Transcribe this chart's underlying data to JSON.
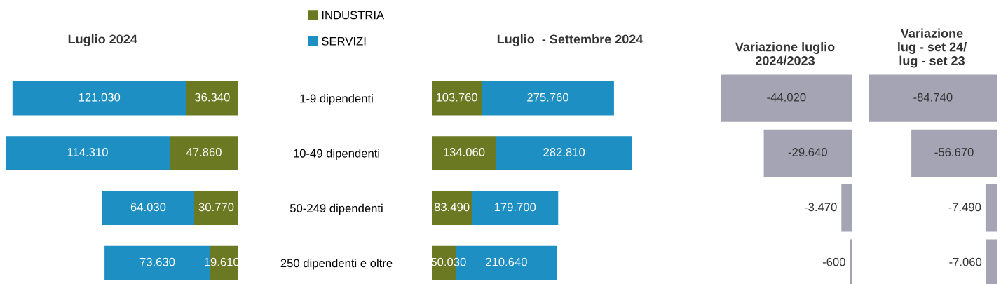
{
  "chart_data": [
    {
      "type": "bar",
      "orientation": "horizontal",
      "stacked": true,
      "title": "Luglio 2024",
      "categories": [
        null,
        null,
        null,
        null
      ],
      "tick_labels": false,
      "legend": "top right",
      "series": [
        {
          "name": "INDUSTRIA",
          "color": "#6b7a22",
          "values": [
            36340,
            47860,
            30770,
            19610
          ],
          "value_labels": [
            "36.340",
            "47.860",
            "30.770",
            "19.610"
          ]
        },
        {
          "name": "SERVIZI",
          "color": "#1e8fc3",
          "values": [
            121030,
            114310,
            64030,
            73630
          ],
          "value_labels": [
            "121.030",
            "114.310",
            "64.030",
            "73.630"
          ]
        }
      ]
    },
    {
      "type": "bar",
      "orientation": "horizontal",
      "stacked": true,
      "title": "Luglio  - Settembre 2024",
      "categories": [
        "1-9 dipendenti",
        "10-49 dipendenti",
        "50-249 dipendenti",
        "250 dipendenti e oltre"
      ],
      "tick_labels": "y",
      "series": [
        {
          "color": "#6b7a22",
          "values": [
            103760,
            134060,
            83490,
            50030
          ],
          "value_labels": [
            "103.760",
            "134.060",
            "83.490",
            "50.030"
          ]
        },
        {
          "color": "#1e8fc3",
          "values": [
            275760,
            282810,
            179700,
            210640
          ],
          "value_labels": [
            "275.760",
            "282.810",
            "179.700",
            "210.640"
          ]
        }
      ]
    },
    {
      "type": "bar",
      "orientation": "horizontal",
      "title": "Variazione luglio\n2024/2023",
      "categories": [
        null,
        null,
        null,
        null
      ],
      "tick_labels": false,
      "series": [
        {
          "color": "#a4a4b4",
          "values": [
            -44020,
            -29640,
            -3470,
            -600
          ],
          "value_labels": [
            "-44.020",
            "-29.640",
            "-3.470",
            "-600"
          ]
        }
      ]
    },
    {
      "type": "bar",
      "orientation": "horizontal",
      "title": "Variazione\nlug - set 24/\nlug - set 23",
      "categories": [
        null,
        null,
        null,
        null
      ],
      "tick_labels": false,
      "series": [
        {
          "color": "#a4a4b4",
          "values": [
            -84740,
            -56670,
            -7490,
            -7060
          ],
          "value_labels": [
            "-84.740",
            "-56.670",
            "-7.490",
            "-7.060"
          ]
        }
      ]
    }
  ]
}
